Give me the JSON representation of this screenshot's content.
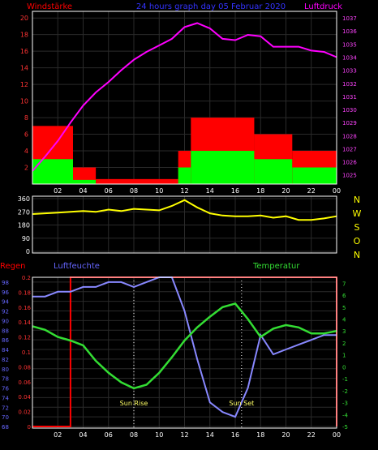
{
  "header": {
    "left": "Windstärke",
    "title": "24 hours graph day 05 Februar 2020",
    "right": "Luftdruck"
  },
  "x_ticks": [
    "02",
    "04",
    "06",
    "08",
    "10",
    "12",
    "14",
    "16",
    "18",
    "20",
    "22",
    "00"
  ],
  "compass_letters": [
    "N",
    "W",
    "S",
    "O",
    "N"
  ],
  "bottom_labels": {
    "rain": "Regen",
    "humidity": "Luftfeuchte",
    "temperature": "Temperatur"
  },
  "annotations": {
    "sunrise": "Sun Rise",
    "sunset": "Sun Set"
  },
  "colors": {
    "wind_gust": "#ff0000",
    "wind_avg": "#00ff00",
    "pressure": "#ff00ff",
    "direction": "#ffff00",
    "humidity": "#8888ff",
    "temperature": "#33dd33",
    "rain": "#ff0000",
    "grid": "#2a2a2a",
    "axis": "#ffffff"
  },
  "chart_data": [
    {
      "type": "bar",
      "title": "24 hours graph day 05 Februar 2020",
      "x_range_hours": [
        0,
        24
      ],
      "y_left_label": "Windstärke",
      "y_left_ticks": [
        2,
        4,
        6,
        8,
        10,
        12,
        14,
        16,
        18,
        20
      ],
      "y_left_range": [
        0,
        20.8
      ],
      "y_right_label": "Luftdruck",
      "y_right_ticks": [
        1025,
        1026,
        1027,
        1028,
        1029,
        1030,
        1031,
        1032,
        1033,
        1034,
        1035,
        1036,
        1037
      ],
      "y_right_range": [
        1024.3,
        1037.5
      ],
      "wind_segments": [
        {
          "x0": 0.0,
          "x1": 3.2,
          "gust": 7,
          "avg": 3
        },
        {
          "x0": 3.2,
          "x1": 5.0,
          "gust": 2,
          "avg": 0.5
        },
        {
          "x0": 5.0,
          "x1": 11.5,
          "gust": 0.6,
          "avg": 0
        },
        {
          "x0": 11.5,
          "x1": 12.5,
          "gust": 4,
          "avg": 2
        },
        {
          "x0": 12.5,
          "x1": 17.5,
          "gust": 8,
          "avg": 4
        },
        {
          "x0": 17.5,
          "x1": 20.5,
          "gust": 6,
          "avg": 3
        },
        {
          "x0": 20.5,
          "x1": 24.0,
          "gust": 4,
          "avg": 2
        }
      ],
      "series": [
        {
          "name": "Luftdruck",
          "x": [
            0,
            1,
            2,
            3,
            4,
            5,
            6,
            7,
            8,
            9,
            10,
            11,
            12,
            13,
            14,
            15,
            16,
            17,
            18,
            19,
            20,
            21,
            22,
            23,
            24
          ],
          "y": [
            1025.3,
            1026.4,
            1027.6,
            1029.0,
            1030.3,
            1031.3,
            1032.1,
            1033.0,
            1033.8,
            1034.4,
            1034.9,
            1035.4,
            1036.3,
            1036.6,
            1036.2,
            1035.4,
            1035.3,
            1035.7,
            1035.6,
            1034.8,
            1034.8,
            1034.8,
            1034.5,
            1034.4,
            1034.0
          ]
        }
      ]
    },
    {
      "type": "line",
      "title": "",
      "x_range_hours": [
        0,
        24
      ],
      "y_ticks": [
        0,
        90,
        180,
        270,
        360
      ],
      "y_range": [
        0,
        360
      ],
      "series": [
        {
          "name": "",
          "x": [
            0,
            2,
            4,
            5,
            6,
            7,
            8,
            9,
            10,
            11,
            12,
            13,
            14,
            15,
            16,
            17,
            18,
            19,
            20,
            21,
            22,
            23,
            24
          ],
          "y": [
            255,
            265,
            275,
            270,
            285,
            275,
            290,
            285,
            280,
            310,
            350,
            300,
            260,
            245,
            240,
            240,
            245,
            230,
            240,
            215,
            215,
            225,
            240
          ]
        }
      ]
    },
    {
      "type": "line",
      "title": "",
      "x_range_hours": [
        0,
        24
      ],
      "humidity_ticks": [
        68,
        70,
        72,
        74,
        76,
        78,
        80,
        82,
        84,
        86,
        88,
        90,
        92,
        94,
        96,
        98
      ],
      "humidity_range": [
        68,
        99
      ],
      "rain_ticks": [
        0,
        0.02,
        0.04,
        0.06,
        0.08,
        0.1,
        0.12,
        0.14,
        0.16,
        0.18,
        0.2
      ],
      "rain_range": [
        0,
        0.2
      ],
      "temperature_ticks": [
        -5,
        -4,
        -3,
        -2,
        -1,
        0,
        1,
        2,
        3,
        4,
        5,
        6,
        7
      ],
      "temperature_range": [
        -5,
        7.5
      ],
      "series": [
        {
          "name": "Luftfeuchte",
          "x": [
            0,
            1,
            2,
            3,
            4,
            5,
            6,
            7,
            8,
            9,
            10,
            11,
            12,
            13,
            14,
            15,
            16,
            17,
            18,
            19,
            20,
            21,
            22,
            23,
            24
          ],
          "y": [
            95,
            95,
            96,
            96,
            97,
            97,
            98,
            98,
            97,
            98,
            99,
            99,
            92,
            82,
            73,
            71,
            70,
            76,
            87,
            83,
            84,
            85,
            86,
            87,
            87
          ]
        },
        {
          "name": "Temperatur",
          "x": [
            0,
            1,
            2,
            3,
            4,
            5,
            6,
            7,
            8,
            9,
            10,
            11,
            12,
            13,
            14,
            15,
            16,
            17,
            18,
            19,
            20,
            21,
            22,
            23,
            24
          ],
          "y": [
            3.4,
            3.1,
            2.5,
            2.2,
            1.8,
            0.5,
            -0.5,
            -1.3,
            -1.8,
            -1.5,
            -0.5,
            0.8,
            2.2,
            3.3,
            4.2,
            5.0,
            5.3,
            4.0,
            2.5,
            3.2,
            3.5,
            3.3,
            2.8,
            2.8,
            3.0
          ]
        },
        {
          "name": "Regen",
          "x": [
            0,
            3,
            3,
            24,
            24
          ],
          "y": [
            0,
            0,
            0.2,
            0.2,
            0
          ]
        }
      ],
      "annotations": [
        {
          "label": "Sun Rise",
          "x": 8.0
        },
        {
          "label": "Sun Set",
          "x": 16.5
        }
      ]
    }
  ]
}
